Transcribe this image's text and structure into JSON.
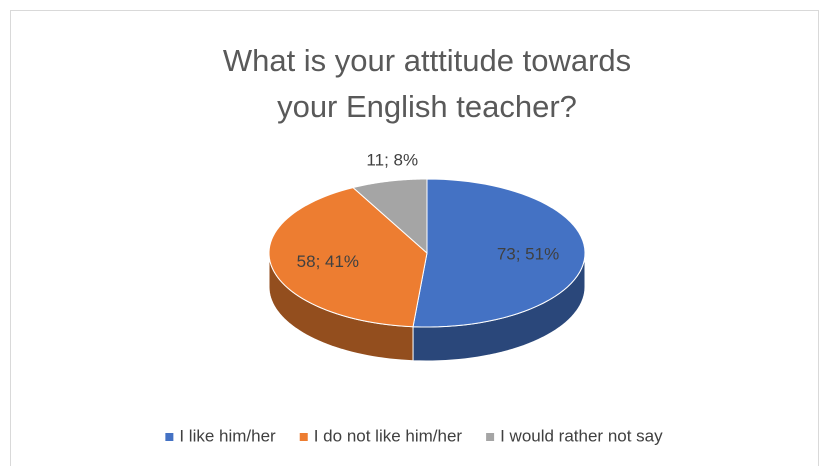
{
  "chart_data": {
    "type": "pie3d",
    "title": "What is your atttitude towards your English teacher?",
    "categories": [
      "I like him/her",
      "I do not like him/her",
      "I would rather not say"
    ],
    "values": [
      73,
      58,
      11
    ],
    "value_labels": [
      "73; 51%",
      "58; 41%",
      "11; 8%"
    ],
    "colors": [
      "#4472c4",
      "#ed7d31",
      "#a5a5a5"
    ],
    "legend": "bottom"
  }
}
